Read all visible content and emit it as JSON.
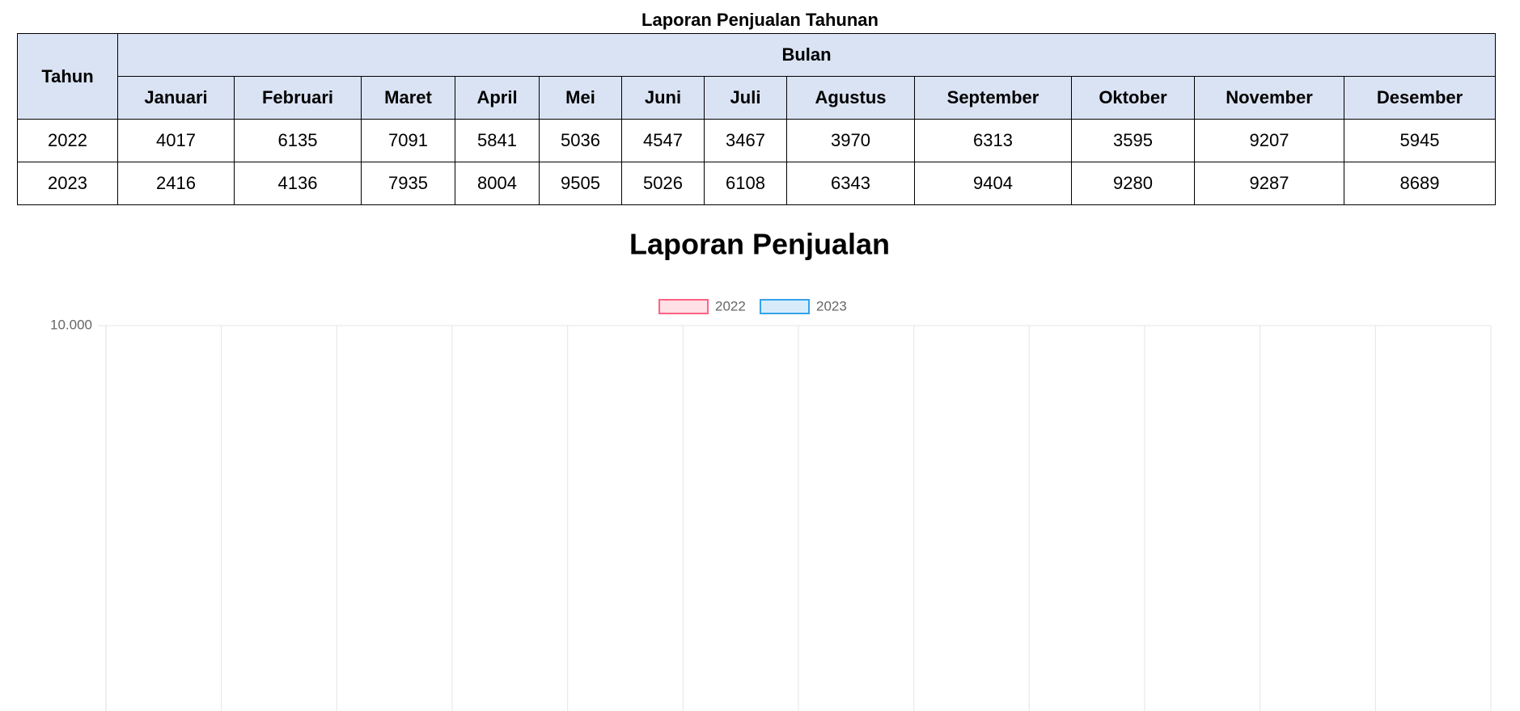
{
  "table": {
    "title": "Laporan Penjualan Tahunan",
    "year_header": "Tahun",
    "group_header": "Bulan",
    "months": [
      "Januari",
      "Februari",
      "Maret",
      "April",
      "Mei",
      "Juni",
      "Juli",
      "Agustus",
      "September",
      "Oktober",
      "November",
      "Desember"
    ],
    "rows": [
      [
        2022,
        4017,
        6135,
        7091,
        5841,
        5036,
        4547,
        3467,
        3970,
        6313,
        3595,
        9207,
        5945
      ],
      [
        2023,
        2416,
        4136,
        7935,
        8004,
        9505,
        5026,
        6108,
        6343,
        9404,
        9280,
        9287,
        8689
      ]
    ]
  },
  "chart_data": {
    "type": "bar",
    "title": "Laporan Penjualan",
    "categories": [
      null,
      null,
      null,
      null,
      null,
      null,
      null,
      null,
      null,
      null,
      null,
      null
    ],
    "series": [
      {
        "name": "2022",
        "color": "#ff6384"
      },
      {
        "name": "2023",
        "color": "#36a2eb"
      }
    ],
    "ylim": [
      0,
      10000
    ],
    "yticks": [
      {
        "value": 10000,
        "label": "10.000"
      }
    ],
    "grid": true
  }
}
